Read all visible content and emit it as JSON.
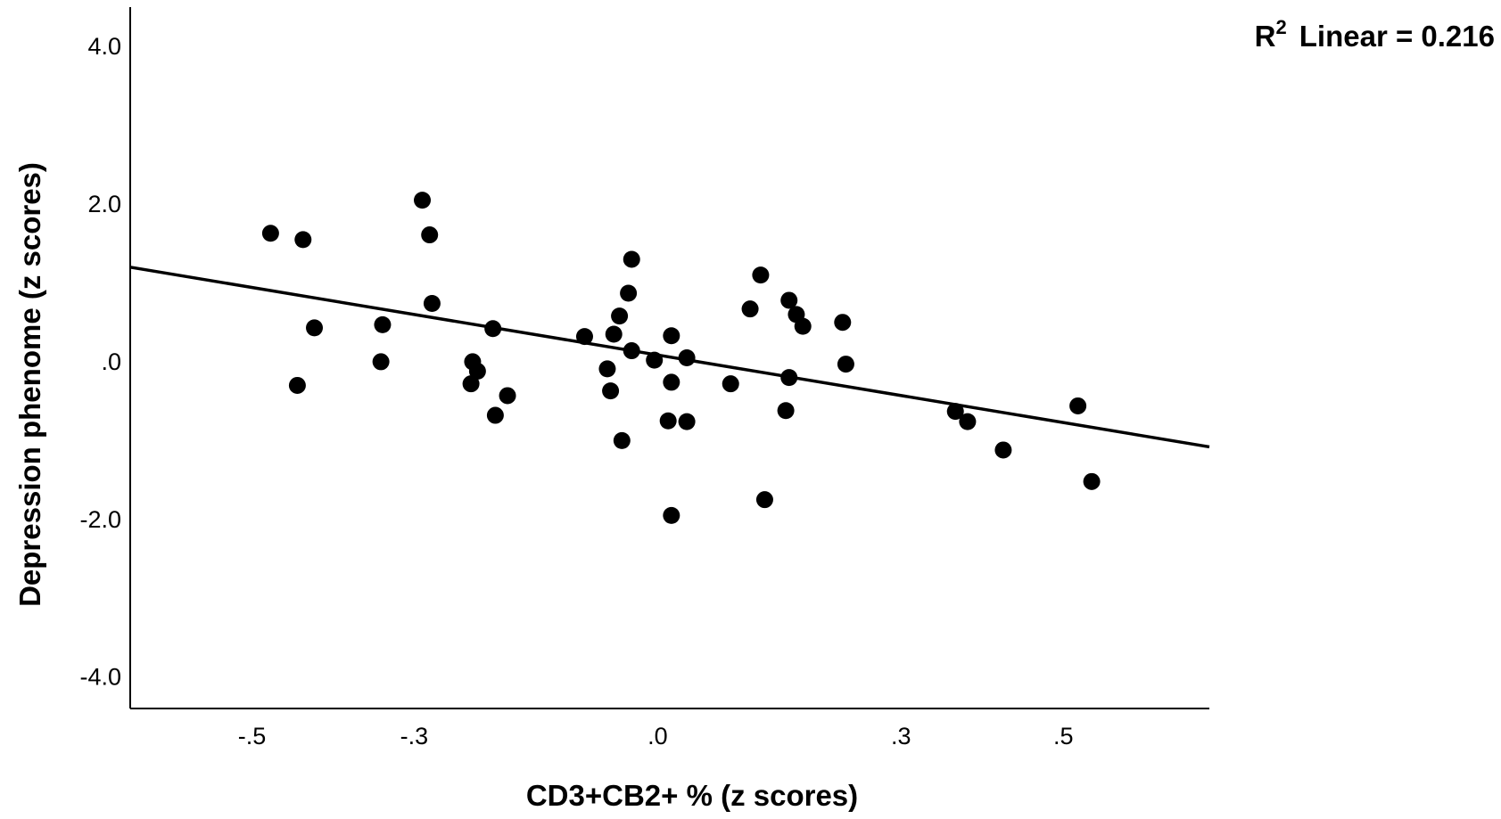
{
  "chart_data": {
    "type": "scatter",
    "title": "",
    "xlabel": "CD3+CB2+ % (z scores)",
    "ylabel": "Depression phenome (z scores)",
    "xlim": [
      -0.65,
      0.68
    ],
    "ylim": [
      -4.4,
      4.5
    ],
    "x_ticks": [
      -0.5,
      -0.3,
      0.0,
      0.3,
      0.5
    ],
    "x_tick_labels": [
      "-.5",
      "-.3",
      ".0",
      ".3",
      ".5"
    ],
    "y_ticks": [
      4.0,
      2.0,
      0.0,
      -2.0,
      -4.0
    ],
    "y_tick_labels": [
      "4.0",
      "2.0",
      ".0",
      "-2.0",
      "-4.0"
    ],
    "grid": false,
    "fit_line": {
      "type": "linear",
      "r2_label": "R",
      "r2_superscript": "2",
      "r2_text": "Linear = 0.216",
      "r2": 0.216,
      "start": [
        -0.65,
        1.2
      ],
      "end": [
        0.68,
        -1.08
      ]
    },
    "points": [
      {
        "x": -0.477,
        "y": 1.63
      },
      {
        "x": -0.437,
        "y": 1.55
      },
      {
        "x": -0.444,
        "y": -0.3
      },
      {
        "x": -0.423,
        "y": 0.43
      },
      {
        "x": -0.339,
        "y": 0.47
      },
      {
        "x": -0.341,
        "y": 0.0
      },
      {
        "x": -0.29,
        "y": 2.05
      },
      {
        "x": -0.281,
        "y": 1.61
      },
      {
        "x": -0.278,
        "y": 0.74
      },
      {
        "x": -0.23,
        "y": -0.28
      },
      {
        "x": -0.228,
        "y": 0.0
      },
      {
        "x": -0.222,
        "y": -0.12
      },
      {
        "x": -0.203,
        "y": 0.42
      },
      {
        "x": -0.2,
        "y": -0.68
      },
      {
        "x": -0.185,
        "y": -0.43
      },
      {
        "x": -0.09,
        "y": 0.32
      },
      {
        "x": -0.062,
        "y": -0.09
      },
      {
        "x": -0.058,
        "y": -0.37
      },
      {
        "x": -0.054,
        "y": 0.35
      },
      {
        "x": -0.047,
        "y": 0.58
      },
      {
        "x": -0.044,
        "y": -1.0
      },
      {
        "x": -0.036,
        "y": 0.87
      },
      {
        "x": -0.032,
        "y": 1.3
      },
      {
        "x": -0.032,
        "y": 0.14
      },
      {
        "x": -0.004,
        "y": 0.02
      },
      {
        "x": 0.013,
        "y": -0.75
      },
      {
        "x": 0.017,
        "y": 0.33
      },
      {
        "x": 0.017,
        "y": -0.26
      },
      {
        "x": 0.017,
        "y": -1.95
      },
      {
        "x": 0.036,
        "y": 0.05
      },
      {
        "x": 0.036,
        "y": -0.76
      },
      {
        "x": 0.09,
        "y": -0.28
      },
      {
        "x": 0.114,
        "y": 0.67
      },
      {
        "x": 0.127,
        "y": 1.1
      },
      {
        "x": 0.132,
        "y": -1.75
      },
      {
        "x": 0.158,
        "y": -0.62
      },
      {
        "x": 0.162,
        "y": 0.78
      },
      {
        "x": 0.162,
        "y": -0.2
      },
      {
        "x": 0.171,
        "y": 0.6
      },
      {
        "x": 0.179,
        "y": 0.45
      },
      {
        "x": 0.228,
        "y": 0.5
      },
      {
        "x": 0.232,
        "y": -0.03
      },
      {
        "x": 0.367,
        "y": -0.63
      },
      {
        "x": 0.382,
        "y": -0.76
      },
      {
        "x": 0.426,
        "y": -1.12
      },
      {
        "x": 0.518,
        "y": -0.56
      },
      {
        "x": 0.535,
        "y": -1.52
      }
    ]
  }
}
